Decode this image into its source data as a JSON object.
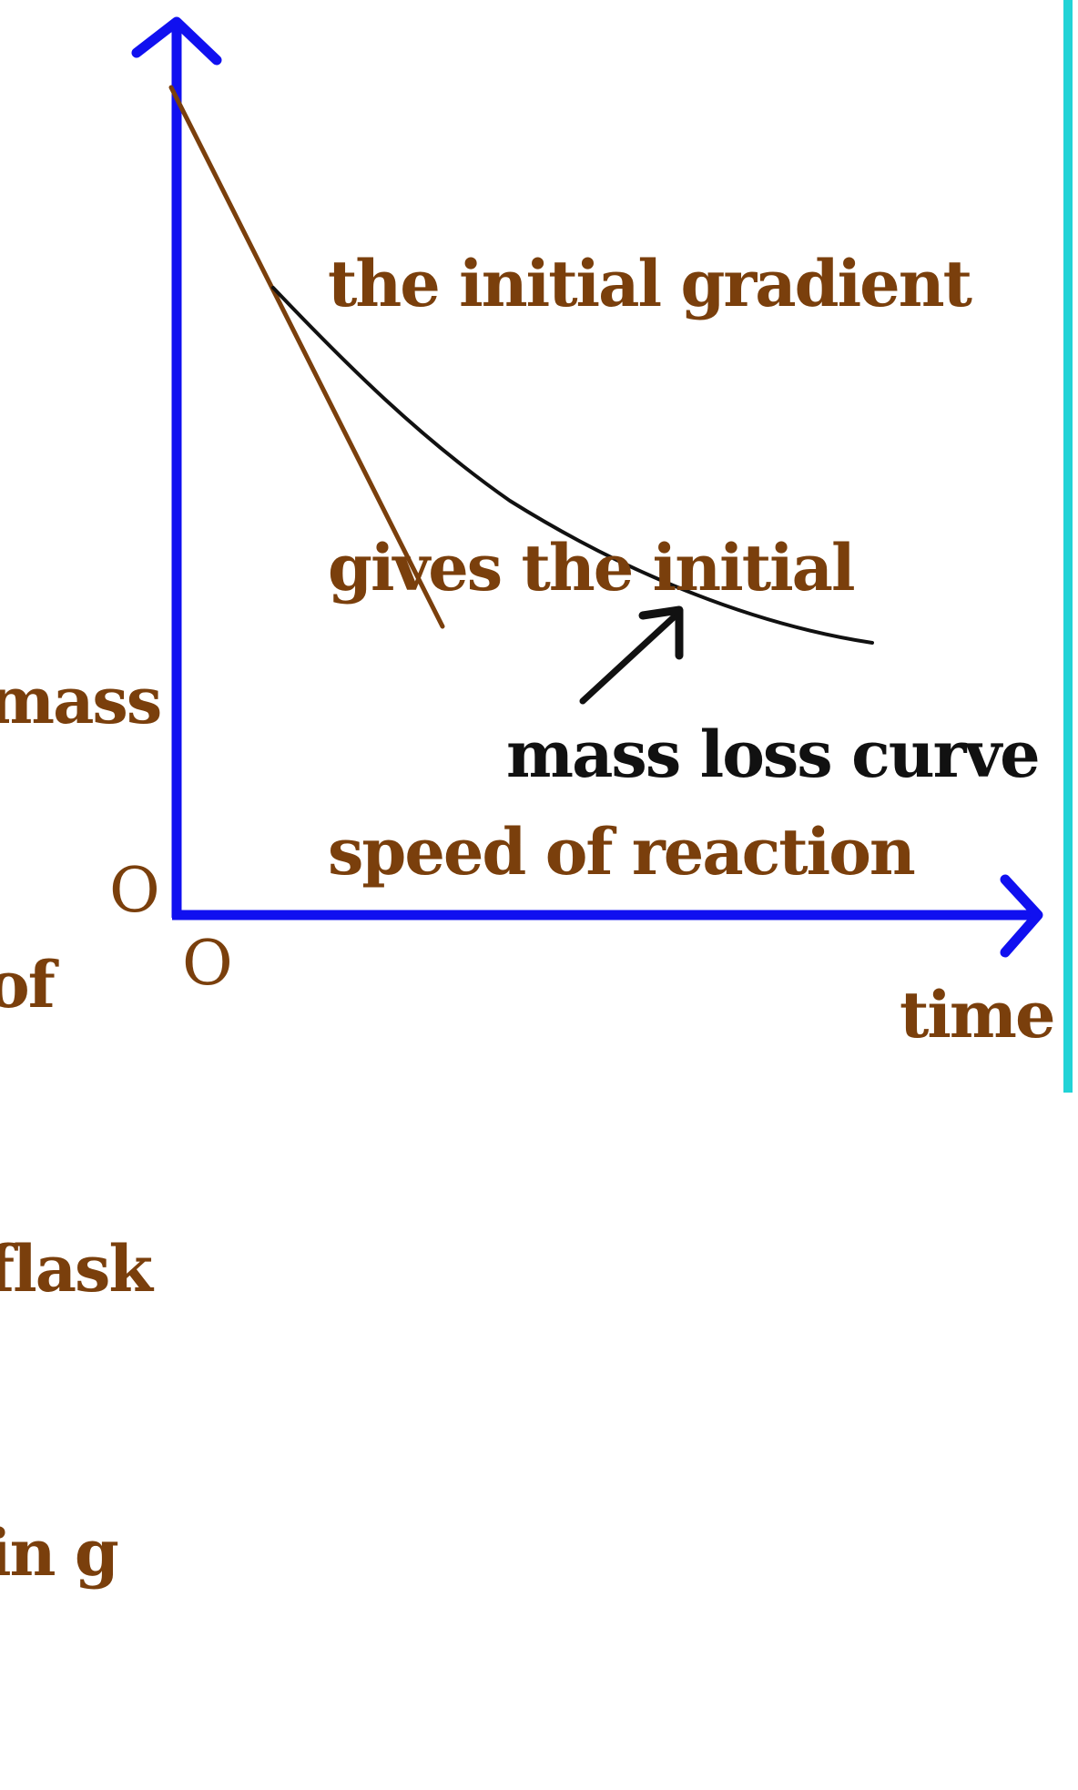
{
  "diagram": {
    "annotation_lines": [
      "the initial gradient",
      "gives the initial",
      "speed of reaction"
    ],
    "ylabel_lines": [
      "mass",
      "of",
      "flask",
      "in g"
    ],
    "xlabel": "time",
    "origin_y_label": "O",
    "origin_x_label": "O",
    "curve_label": "mass loss curve",
    "colors": {
      "axes": "#1010f0",
      "text": "#7a3f0c",
      "tangent": "#7a3f0c",
      "curve": "#111111",
      "edge_bar": "#22d3d6"
    }
  }
}
